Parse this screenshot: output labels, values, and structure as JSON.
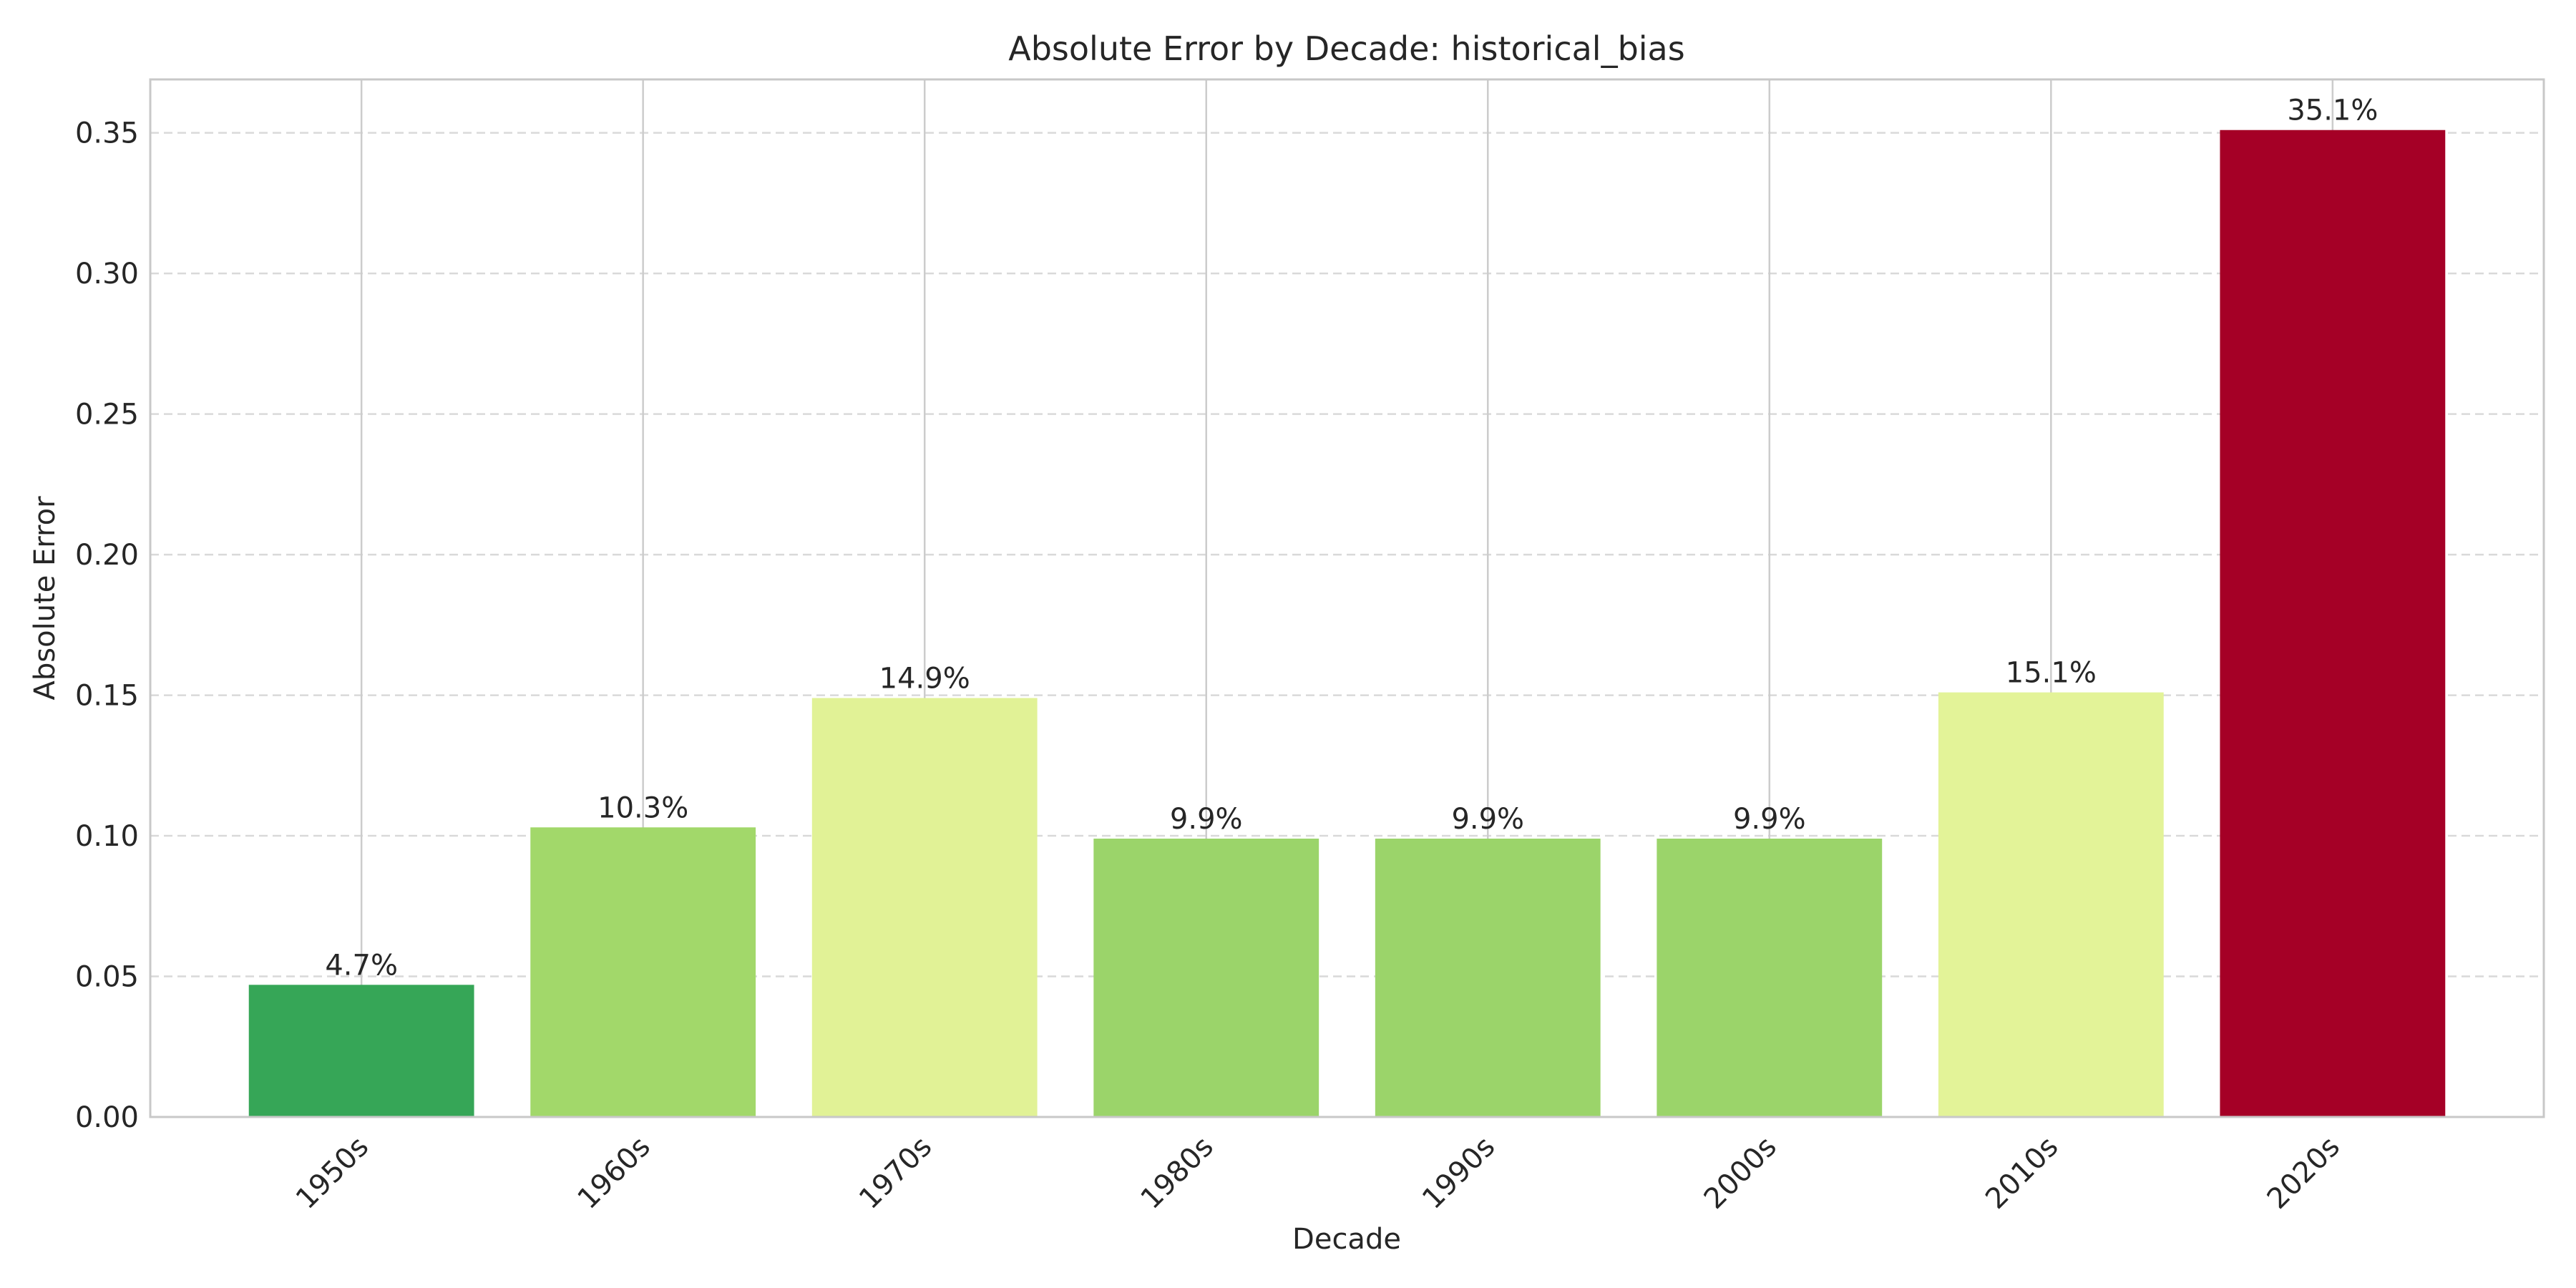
{
  "chart_data": {
    "type": "bar",
    "title": "Absolute Error by Decade: historical_bias",
    "xlabel": "Decade",
    "ylabel": "Absolute Error",
    "categories": [
      "1950s",
      "1960s",
      "1970s",
      "1980s",
      "1990s",
      "2000s",
      "2010s",
      "2020s"
    ],
    "values": [
      0.047,
      0.103,
      0.149,
      0.099,
      0.099,
      0.099,
      0.151,
      0.351
    ],
    "data_labels": [
      "4.7%",
      "10.3%",
      "14.9%",
      "9.9%",
      "9.9%",
      "9.9%",
      "15.1%",
      "35.1%"
    ],
    "colors": [
      "#36a657",
      "#a2d86a",
      "#e1f296",
      "#9bd46a",
      "#9bd46a",
      "#9bd46a",
      "#e3f398",
      "#a50026"
    ],
    "ylim": [
      0,
      0.369
    ],
    "yticks": [
      0.0,
      0.05,
      0.1,
      0.15,
      0.2,
      0.25,
      0.3,
      0.35
    ],
    "ytick_labels": [
      "0.00",
      "0.05",
      "0.10",
      "0.15",
      "0.20",
      "0.25",
      "0.30",
      "0.35"
    ],
    "grid": {
      "x": "solid",
      "y": "dashed"
    },
    "legend": "none"
  }
}
